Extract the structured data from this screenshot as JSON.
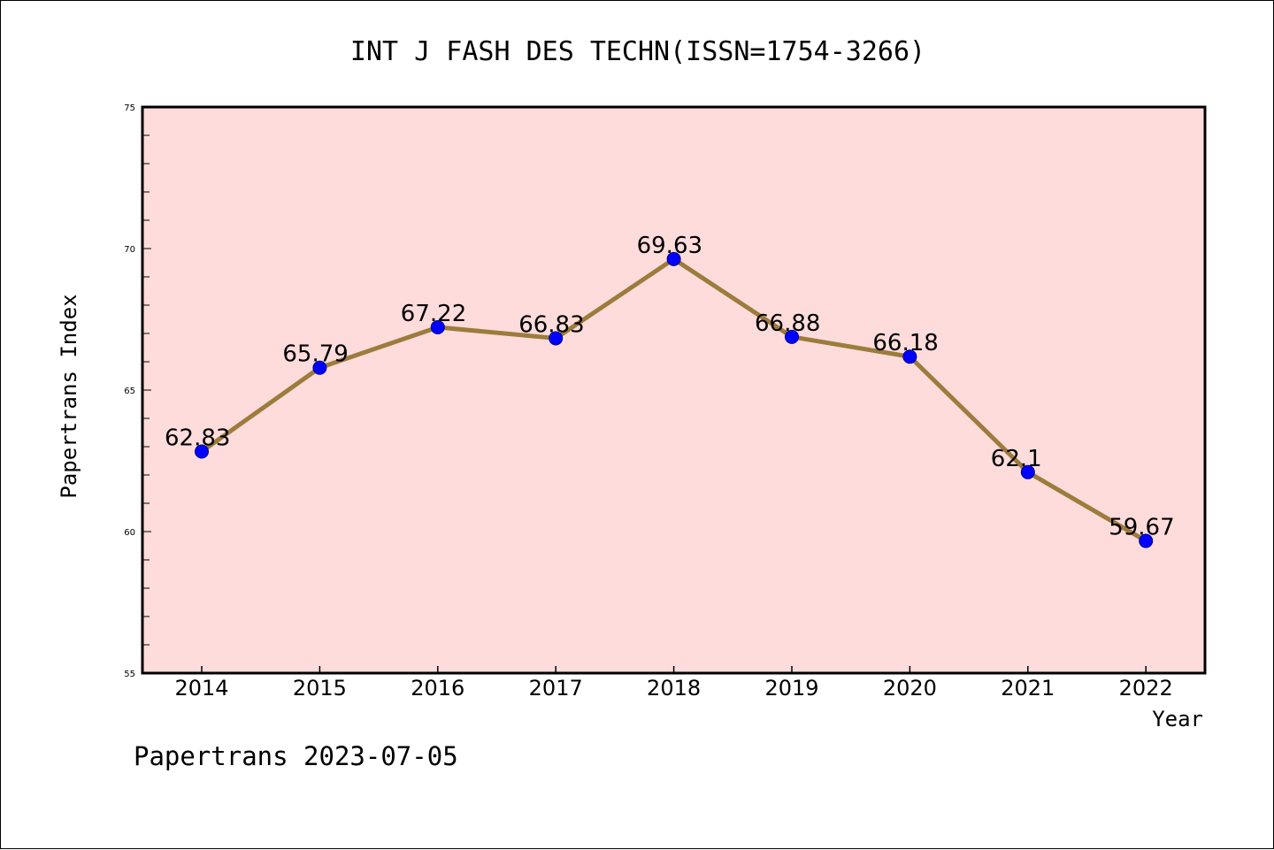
{
  "chart_data": {
    "type": "line",
    "title": "INT J FASH DES TECHN(ISSN=1754-3266)",
    "xlabel": "Year",
    "ylabel": "Papertrans Index",
    "categories": [
      "2014",
      "2015",
      "2016",
      "2017",
      "2018",
      "2019",
      "2020",
      "2021",
      "2022"
    ],
    "series": [
      {
        "values": [
          62.83,
          65.79,
          67.22,
          66.83,
          69.63,
          66.88,
          66.18,
          62.1,
          59.67
        ],
        "labels": [
          "62.83",
          "65.79",
          "67.22",
          "66.83",
          "69.63",
          "66.88",
          "66.18",
          "62.1",
          "59.67"
        ]
      }
    ],
    "ylim": [
      55,
      75
    ],
    "yticks": [
      "55",
      "60",
      "65",
      "70",
      "75"
    ],
    "grid": false,
    "legend": "none",
    "colors": {
      "plot_background": "#ffdcdc",
      "line": "#9c7c3c",
      "marker": "#0000ff"
    }
  },
  "footer": {
    "text": "Papertrans 2023-07-05"
  }
}
